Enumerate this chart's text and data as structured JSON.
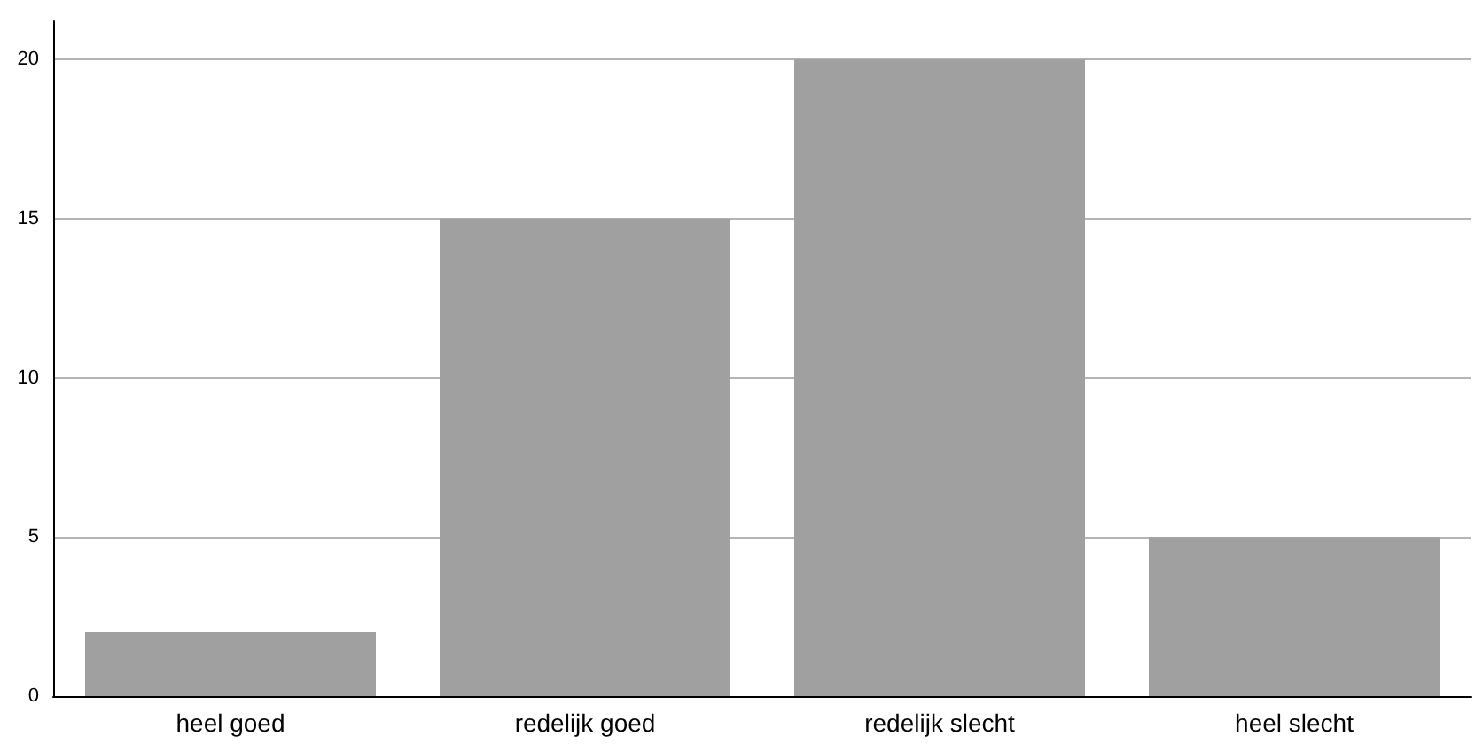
{
  "chart_data": {
    "type": "bar",
    "categories": [
      "heel goed",
      "redelijk goed",
      "redelijk slecht",
      "heel slecht"
    ],
    "values": [
      2,
      15,
      20,
      5
    ],
    "color": "#a0a0a0",
    "ylim": [
      0,
      21.2
    ],
    "yticks": [
      0,
      5,
      10,
      15,
      20
    ],
    "grid": "y"
  }
}
